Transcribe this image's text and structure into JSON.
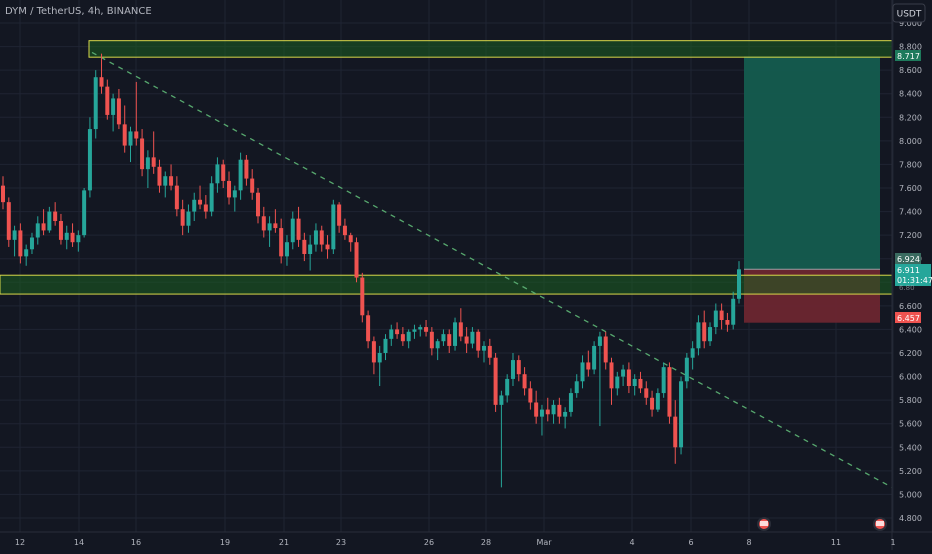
{
  "header": {
    "symbol_label": "DYM / TetherUS, 4h, BINANCE",
    "currency_button": "USDT"
  },
  "colors": {
    "background": "#131722",
    "grid": "#1f2433",
    "up": "#26a69a",
    "down": "#ef5350",
    "zone_fill": "#1b5e20",
    "zone_border": "#d8d84a",
    "target_fill": "#145c4f",
    "stop_fill": "#6b2630",
    "trendline": "#57a86e",
    "axis_text": "#b2b5be"
  },
  "axis": {
    "y_ticks": [
      "9.000",
      "8.800",
      "8.600",
      "8.400",
      "8.200",
      "8.000",
      "7.800",
      "7.600",
      "7.400",
      "7.200",
      "7.000",
      "6.800",
      "6.600",
      "6.400",
      "6.200",
      "6.000",
      "5.800",
      "5.600",
      "5.400",
      "5.200",
      "5.000",
      "4.800"
    ],
    "x_ticks": [
      "12",
      "14",
      "16",
      "19",
      "21",
      "23",
      "26",
      "28",
      "Mar",
      "4",
      "6",
      "8",
      "11",
      "1"
    ]
  },
  "price_labels": {
    "top_zone": "8.717",
    "target": "6.924",
    "current": "6.911",
    "countdown": "01:31:47",
    "stop": "6.457",
    "hidden": "6.80"
  },
  "chart_data": {
    "type": "candlestick",
    "symbol": "DYM / TetherUS",
    "interval": "4h",
    "exchange": "BINANCE",
    "ylim": [
      4.7,
      9.05
    ],
    "x_tick_labels": [
      "12",
      "14",
      "16",
      "19",
      "21",
      "23",
      "26",
      "28",
      "Mar",
      "4",
      "6",
      "8",
      "11",
      "1"
    ],
    "zones": [
      {
        "low": 8.71,
        "high": 8.85
      },
      {
        "low": 6.7,
        "high": 6.86
      }
    ],
    "trendline": {
      "from": [
        "14",
        8.75
      ],
      "to": [
        "1",
        5.06
      ]
    },
    "position": {
      "side": "long",
      "entry": 6.911,
      "target": 8.717,
      "stop": 6.457
    },
    "last_price": 6.911,
    "candles_ohlc": [
      [
        7.62,
        7.7,
        7.42,
        7.48
      ],
      [
        7.48,
        7.52,
        7.1,
        7.16
      ],
      [
        7.16,
        7.28,
        7.02,
        7.24
      ],
      [
        7.24,
        7.3,
        6.96,
        7.02
      ],
      [
        7.02,
        7.12,
        6.94,
        7.08
      ],
      [
        7.08,
        7.22,
        7.04,
        7.18
      ],
      [
        7.18,
        7.36,
        7.12,
        7.3
      ],
      [
        7.3,
        7.42,
        7.2,
        7.24
      ],
      [
        7.24,
        7.44,
        7.22,
        7.4
      ],
      [
        7.4,
        7.48,
        7.28,
        7.32
      ],
      [
        7.32,
        7.38,
        7.12,
        7.16
      ],
      [
        7.16,
        7.28,
        7.08,
        7.22
      ],
      [
        7.22,
        7.3,
        7.1,
        7.14
      ],
      [
        7.14,
        7.24,
        7.06,
        7.2
      ],
      [
        7.2,
        7.6,
        7.18,
        7.58
      ],
      [
        7.58,
        8.2,
        7.52,
        8.1
      ],
      [
        8.1,
        8.6,
        8.02,
        8.54
      ],
      [
        8.54,
        8.74,
        8.4,
        8.46
      ],
      [
        8.46,
        8.52,
        8.18,
        8.22
      ],
      [
        8.22,
        8.4,
        8.08,
        8.36
      ],
      [
        8.36,
        8.44,
        8.1,
        8.14
      ],
      [
        8.14,
        8.3,
        7.9,
        7.96
      ],
      [
        7.96,
        8.12,
        7.82,
        8.08
      ],
      [
        8.08,
        8.5,
        7.96,
        8.02
      ],
      [
        8.02,
        8.1,
        7.7,
        7.76
      ],
      [
        7.76,
        7.92,
        7.6,
        7.86
      ],
      [
        7.86,
        8.08,
        7.72,
        7.78
      ],
      [
        7.78,
        7.84,
        7.56,
        7.62
      ],
      [
        7.62,
        7.74,
        7.52,
        7.7
      ],
      [
        7.7,
        7.8,
        7.58,
        7.62
      ],
      [
        7.62,
        7.7,
        7.36,
        7.42
      ],
      [
        7.42,
        7.5,
        7.2,
        7.28
      ],
      [
        7.28,
        7.46,
        7.22,
        7.4
      ],
      [
        7.4,
        7.56,
        7.32,
        7.5
      ],
      [
        7.5,
        7.62,
        7.42,
        7.46
      ],
      [
        7.46,
        7.54,
        7.34,
        7.4
      ],
      [
        7.4,
        7.7,
        7.36,
        7.64
      ],
      [
        7.64,
        7.86,
        7.56,
        7.8
      ],
      [
        7.8,
        7.84,
        7.6,
        7.66
      ],
      [
        7.66,
        7.74,
        7.46,
        7.52
      ],
      [
        7.52,
        7.62,
        7.4,
        7.58
      ],
      [
        7.58,
        7.9,
        7.5,
        7.84
      ],
      [
        7.84,
        7.88,
        7.62,
        7.68
      ],
      [
        7.68,
        7.76,
        7.5,
        7.56
      ],
      [
        7.56,
        7.6,
        7.3,
        7.36
      ],
      [
        7.36,
        7.44,
        7.18,
        7.24
      ],
      [
        7.24,
        7.36,
        7.1,
        7.3
      ],
      [
        7.3,
        7.42,
        7.22,
        7.26
      ],
      [
        7.26,
        7.34,
        6.96,
        7.02
      ],
      [
        7.02,
        7.2,
        6.94,
        7.14
      ],
      [
        7.14,
        7.4,
        7.08,
        7.34
      ],
      [
        7.34,
        7.44,
        7.1,
        7.16
      ],
      [
        7.16,
        7.22,
        6.98,
        7.04
      ],
      [
        7.04,
        7.2,
        6.9,
        7.12
      ],
      [
        7.12,
        7.3,
        7.06,
        7.24
      ],
      [
        7.24,
        7.28,
        7.06,
        7.12
      ],
      [
        7.12,
        7.2,
        7.0,
        7.08
      ],
      [
        7.08,
        7.5,
        7.04,
        7.46
      ],
      [
        7.46,
        7.48,
        7.22,
        7.28
      ],
      [
        7.28,
        7.34,
        7.16,
        7.2
      ],
      [
        7.2,
        7.22,
        7.06,
        7.14
      ],
      [
        7.14,
        7.18,
        6.8,
        6.84
      ],
      [
        6.84,
        6.88,
        6.46,
        6.52
      ],
      [
        6.52,
        6.56,
        6.24,
        6.3
      ],
      [
        6.3,
        6.34,
        6.02,
        6.12
      ],
      [
        6.12,
        6.26,
        5.92,
        6.2
      ],
      [
        6.2,
        6.36,
        6.14,
        6.32
      ],
      [
        6.32,
        6.44,
        6.26,
        6.4
      ],
      [
        6.4,
        6.46,
        6.32,
        6.36
      ],
      [
        6.36,
        6.42,
        6.26,
        6.3
      ],
      [
        6.3,
        6.4,
        6.24,
        6.38
      ],
      [
        6.38,
        6.44,
        6.32,
        6.4
      ],
      [
        6.4,
        6.44,
        6.34,
        6.42
      ],
      [
        6.42,
        6.48,
        6.34,
        6.38
      ],
      [
        6.38,
        6.42,
        6.18,
        6.24
      ],
      [
        6.24,
        6.32,
        6.14,
        6.3
      ],
      [
        6.3,
        6.4,
        6.26,
        6.36
      ],
      [
        6.36,
        6.4,
        6.2,
        6.26
      ],
      [
        6.26,
        6.5,
        6.22,
        6.46
      ],
      [
        6.46,
        6.58,
        6.3,
        6.34
      ],
      [
        6.34,
        6.42,
        6.2,
        6.28
      ],
      [
        6.28,
        6.42,
        6.24,
        6.38
      ],
      [
        6.38,
        6.4,
        6.16,
        6.22
      ],
      [
        6.22,
        6.3,
        6.12,
        6.26
      ],
      [
        6.26,
        6.32,
        6.1,
        6.16
      ],
      [
        6.16,
        6.2,
        5.7,
        5.76
      ],
      [
        5.76,
        5.88,
        5.06,
        5.84
      ],
      [
        5.84,
        6.02,
        5.78,
        5.98
      ],
      [
        5.98,
        6.2,
        5.92,
        6.14
      ],
      [
        6.14,
        6.18,
        5.96,
        6.02
      ],
      [
        6.02,
        6.08,
        5.84,
        5.9
      ],
      [
        5.9,
        5.96,
        5.72,
        5.78
      ],
      [
        5.78,
        5.88,
        5.6,
        5.66
      ],
      [
        5.66,
        5.76,
        5.5,
        5.72
      ],
      [
        5.72,
        5.82,
        5.62,
        5.68
      ],
      [
        5.68,
        5.8,
        5.6,
        5.76
      ],
      [
        5.76,
        5.82,
        5.6,
        5.66
      ],
      [
        5.66,
        5.74,
        5.56,
        5.7
      ],
      [
        5.7,
        5.9,
        5.66,
        5.86
      ],
      [
        5.86,
        6.02,
        5.82,
        5.96
      ],
      [
        5.96,
        6.18,
        5.9,
        6.12
      ],
      [
        6.12,
        6.22,
        6.0,
        6.06
      ],
      [
        6.06,
        6.3,
        6.02,
        6.26
      ],
      [
        6.26,
        6.38,
        5.58,
        6.34
      ],
      [
        6.34,
        6.38,
        6.06,
        6.12
      ],
      [
        6.12,
        6.16,
        5.76,
        5.9
      ],
      [
        5.9,
        6.04,
        5.84,
        6.0
      ],
      [
        6.0,
        6.1,
        5.92,
        6.06
      ],
      [
        6.06,
        6.12,
        5.86,
        5.92
      ],
      [
        5.92,
        6.02,
        5.84,
        5.98
      ],
      [
        5.98,
        6.04,
        5.86,
        5.9
      ],
      [
        5.9,
        5.96,
        5.76,
        5.82
      ],
      [
        5.82,
        5.88,
        5.66,
        5.72
      ],
      [
        5.72,
        5.9,
        5.7,
        5.86
      ],
      [
        5.86,
        6.12,
        5.82,
        6.08
      ],
      [
        6.08,
        6.12,
        5.6,
        5.66
      ],
      [
        5.66,
        5.8,
        5.26,
        5.4
      ],
      [
        5.4,
        6.0,
        5.34,
        5.96
      ],
      [
        5.96,
        6.2,
        5.9,
        6.16
      ],
      [
        6.16,
        6.3,
        6.06,
        6.24
      ],
      [
        6.24,
        6.52,
        6.18,
        6.46
      ],
      [
        6.46,
        6.56,
        6.24,
        6.3
      ],
      [
        6.3,
        6.46,
        6.26,
        6.42
      ],
      [
        6.42,
        6.62,
        6.36,
        6.56
      ],
      [
        6.56,
        6.62,
        6.4,
        6.48
      ],
      [
        6.48,
        6.54,
        6.38,
        6.44
      ],
      [
        6.44,
        6.72,
        6.4,
        6.66
      ],
      [
        6.66,
        6.98,
        6.62,
        6.91
      ]
    ]
  }
}
